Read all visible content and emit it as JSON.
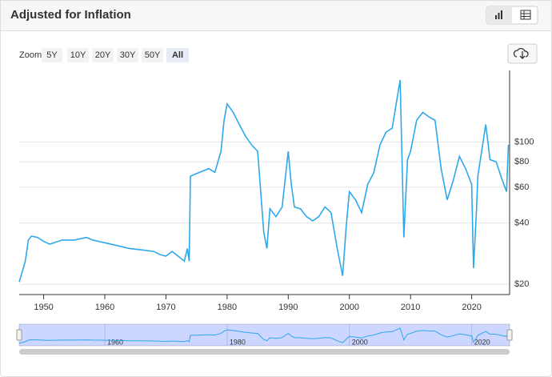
{
  "header": {
    "title": "Adjusted for Inflation"
  },
  "toolbar": {
    "zoom_label": "Zoom",
    "buttons": [
      "5Y",
      "10Y",
      "20Y",
      "30Y",
      "50Y",
      "All"
    ]
  },
  "chart_data": {
    "type": "line",
    "log_scale": true,
    "color": "#2ea8ea",
    "grid": true,
    "x": [
      1946.0,
      1946.5,
      1947,
      1947.5,
      1948,
      1949,
      1950,
      1951,
      1953,
      1955,
      1957,
      1958,
      1960,
      1962,
      1964,
      1966,
      1968,
      1969,
      1970,
      1971,
      1972,
      1973,
      1973.5,
      1973.8,
      1974.0,
      1975,
      1976,
      1977,
      1978,
      1979,
      1979.5,
      1980,
      1981,
      1982,
      1983,
      1984,
      1985,
      1986,
      1986.5,
      1987,
      1988,
      1989,
      1990,
      1990.5,
      1991,
      1992,
      1993,
      1994,
      1995,
      1996,
      1997,
      1998,
      1998.9,
      1999.5,
      2000,
      2001,
      2002,
      2003,
      2004,
      2005,
      2006,
      2007,
      2008.3,
      2008.9,
      2009.5,
      2010,
      2011,
      2012,
      2013,
      2014,
      2015,
      2016,
      2017,
      2018,
      2019,
      2020.0,
      2020.3,
      2020.8,
      2021,
      2022.3,
      2023,
      2024,
      2025,
      2025.7,
      2026
    ],
    "values": [
      20.5,
      23,
      26,
      33,
      34.5,
      34,
      32.5,
      31.5,
      33,
      33,
      34,
      33,
      32,
      31,
      30,
      29.5,
      29,
      28,
      27.5,
      29,
      27.5,
      26,
      30,
      26,
      68,
      70,
      72,
      74,
      71,
      90,
      128,
      154,
      140,
      122,
      107,
      97,
      90,
      36,
      30,
      47,
      43,
      48,
      90,
      62,
      48,
      47,
      43,
      41,
      43,
      48,
      45,
      30,
      22,
      39,
      57,
      52,
      45,
      62,
      71,
      97,
      112,
      117,
      202,
      34,
      82,
      90,
      128,
      140,
      133,
      128,
      74,
      52,
      65,
      85,
      74,
      62,
      24,
      47,
      68,
      122,
      82,
      80,
      65,
      57,
      97
    ],
    "xlim": [
      1946,
      2026.2
    ],
    "xticks": [
      1950,
      1960,
      1970,
      1980,
      1990,
      2000,
      2010,
      2020
    ],
    "ylim": [
      17.8,
      225
    ],
    "yticks": [
      {
        "value": 20,
        "label": "$20"
      },
      {
        "value": 40,
        "label": "$40"
      },
      {
        "value": 60,
        "label": "$60"
      },
      {
        "value": 80,
        "label": "$80"
      },
      {
        "value": 100,
        "label": "$100"
      }
    ],
    "navigator_xticks": [
      1960,
      1980,
      2000,
      2020
    ]
  }
}
